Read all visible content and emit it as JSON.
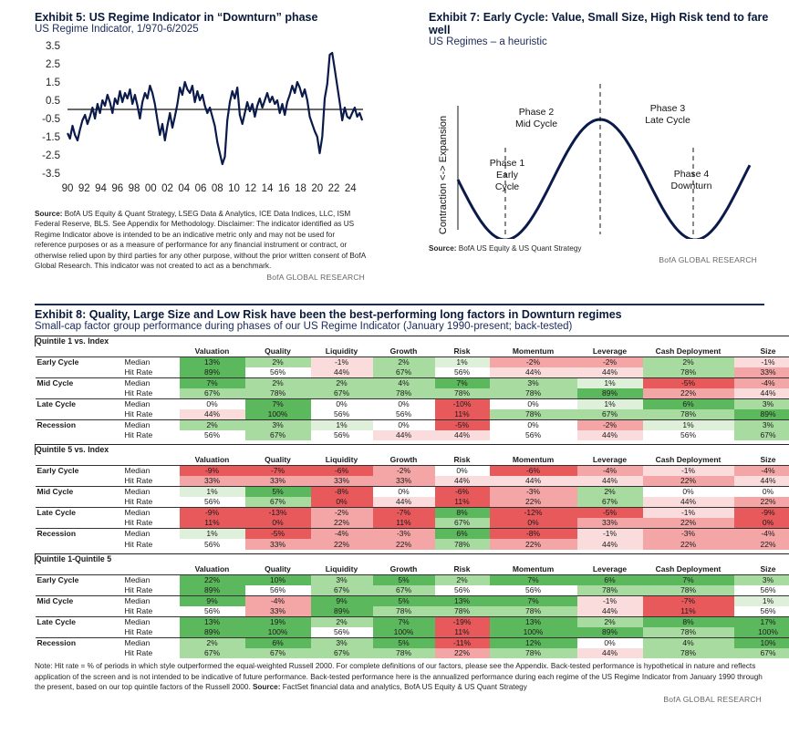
{
  "ex5": {
    "title": "Exhibit 5: US Regime Indicator in “Downturn” phase",
    "subtitle": "US Regime Indicator, 1/970-6/2025",
    "source_label": "Source:",
    "source_text": " BofA US Equity & Quant Strategy, LSEG Data & Analytics, ICE Data Indices, LLC, ISM Federal Reserve, BLS. See Appendix for Methodology. Disclaimer: The indicator identified as US Regime Indicator above is intended to be an indicative metric only and may not be used for reference purposes or as a measure of performance for any financial instrument or contract, or otherwise relied upon by third parties for any other purpose, without the prior written consent of BofA Global Research. This indicator was not created to act as a benchmark.",
    "brand": "BofA GLOBAL RESEARCH"
  },
  "chart_data": [
    {
      "type": "line",
      "title": "Exhibit 5: US Regime Indicator in “Downturn” phase",
      "subtitle": "US Regime Indicator, 1/970-6/2025",
      "ylim": [
        -3.5,
        3.5
      ],
      "yticks": [
        3.5,
        2.5,
        1.5,
        0.5,
        -0.5,
        -1.5,
        -2.5,
        -3.5
      ],
      "ytick_labels": [
        "3.5",
        "2.5",
        "1.5",
        "0.5",
        "-0.5",
        "-1.5",
        "-2.5",
        "-3.5"
      ],
      "xlim": [
        1990,
        2025.5
      ],
      "xticks": [
        1990,
        1992,
        1994,
        1996,
        1998,
        2000,
        2002,
        2004,
        2006,
        2008,
        2010,
        2012,
        2014,
        2016,
        2018,
        2020,
        2022,
        2024
      ],
      "xtick_labels": [
        "90",
        "92",
        "94",
        "96",
        "98",
        "00",
        "02",
        "04",
        "06",
        "08",
        "10",
        "12",
        "14",
        "16",
        "18",
        "20",
        "22",
        "24"
      ],
      "reference_line": 0,
      "color": "#0a1a4a",
      "x": [
        1990.0,
        1990.3,
        1990.6,
        1990.9,
        1991.2,
        1991.5,
        1991.8,
        1992.1,
        1992.4,
        1992.7,
        1993.0,
        1993.3,
        1993.6,
        1993.9,
        1994.2,
        1994.5,
        1994.8,
        1995.1,
        1995.4,
        1995.7,
        1996.0,
        1996.3,
        1996.6,
        1996.9,
        1997.2,
        1997.5,
        1997.8,
        1998.1,
        1998.4,
        1998.7,
        1999.0,
        1999.3,
        1999.6,
        1999.9,
        2000.2,
        2000.5,
        2000.8,
        2001.1,
        2001.4,
        2001.7,
        2002.0,
        2002.3,
        2002.6,
        2002.9,
        2003.2,
        2003.5,
        2003.8,
        2004.1,
        2004.4,
        2004.7,
        2005.0,
        2005.3,
        2005.6,
        2005.9,
        2006.2,
        2006.5,
        2006.8,
        2007.1,
        2007.4,
        2007.7,
        2008.0,
        2008.3,
        2008.6,
        2008.9,
        2009.2,
        2009.5,
        2009.8,
        2010.1,
        2010.4,
        2010.7,
        2011.0,
        2011.3,
        2011.6,
        2011.9,
        2012.2,
        2012.5,
        2012.8,
        2013.1,
        2013.4,
        2013.7,
        2014.0,
        2014.3,
        2014.6,
        2014.9,
        2015.2,
        2015.5,
        2015.8,
        2016.1,
        2016.4,
        2016.7,
        2017.0,
        2017.3,
        2017.6,
        2017.9,
        2018.2,
        2018.5,
        2018.8,
        2019.1,
        2019.4,
        2019.7,
        2020.0,
        2020.3,
        2020.6,
        2020.9,
        2021.2,
        2021.5,
        2021.8,
        2022.1,
        2022.4,
        2022.7,
        2023.0,
        2023.3,
        2023.6,
        2023.9,
        2024.2,
        2024.5,
        2024.8,
        2025.1,
        2025.4
      ],
      "y": [
        -1.3,
        -1.6,
        -0.9,
        -1.4,
        -1.7,
        -1.1,
        -0.6,
        -0.3,
        -0.8,
        -0.4,
        0.1,
        -0.5,
        0.3,
        -0.2,
        0.5,
        0.2,
        0.8,
        0.4,
        -0.2,
        0.6,
        0.3,
        1.0,
        0.4,
        0.9,
        0.6,
        1.1,
        0.3,
        0.8,
        0.2,
        -0.5,
        0.4,
        0.9,
        0.6,
        1.3,
        0.9,
        0.3,
        -0.6,
        -1.4,
        -0.8,
        -1.7,
        -0.9,
        -0.2,
        -1.0,
        -0.4,
        0.3,
        1.2,
        0.8,
        1.5,
        1.1,
        0.9,
        1.3,
        0.4,
        1.0,
        0.5,
        0.8,
        0.2,
        -0.2,
        0.1,
        -0.4,
        -0.9,
        -1.8,
        -2.4,
        -3.0,
        -2.6,
        -0.6,
        0.4,
        1.0,
        0.6,
        1.2,
        -0.3,
        -0.8,
        -0.2,
        0.4,
        -0.1,
        0.3,
        -0.4,
        0.2,
        0.6,
        0.1,
        0.5,
        0.9,
        0.4,
        0.7,
        0.3,
        0.5,
        -0.2,
        0.3,
        -0.3,
        0.4,
        0.8,
        1.3,
        0.9,
        1.5,
        1.2,
        0.7,
        1.1,
        0.5,
        -0.4,
        -0.8,
        -1.2,
        -1.5,
        -2.4,
        -1.5,
        0.6,
        1.4,
        3.0,
        3.1,
        2.2,
        1.3,
        0.4,
        -0.6,
        0.1,
        -0.4,
        -0.5,
        -0.2,
        0.1,
        -0.4,
        -0.2,
        -0.6
      ]
    }
  ],
  "ex7": {
    "title": "Exhibit 7: Early Cycle: Value, Small Size, High Risk tend to fare well",
    "subtitle": "US Regimes – a heuristic",
    "y_axis_label": "Contraction <-> Expansion",
    "phase1": [
      "Phase 1",
      "Early",
      "Cycle"
    ],
    "phase2": [
      "Phase 2",
      "Mid Cycle"
    ],
    "phase3": [
      "Phase 3",
      "Late Cycle"
    ],
    "phase4": [
      "Phase 4",
      "Downturn"
    ],
    "source_label": "Source:",
    "source_text": " BofA US Equity & US Quant Strategy",
    "brand": "BofA GLOBAL RESEARCH"
  },
  "ex8": {
    "title": "Exhibit 8: Quality, Large Size and Low Risk have been the best-performing long factors in Downturn regimes",
    "subtitle": "Small-cap factor group performance during phases of our US Regime Indicator (January 1990-present; back-tested)",
    "columns": [
      "Valuation",
      "Quality",
      "Liquidity",
      "Growth",
      "Risk",
      "Momentum",
      "Leverage",
      "Cash Deployment",
      "Size"
    ],
    "stat_labels": [
      "Median",
      "Hit Rate"
    ],
    "blocks": [
      {
        "title": "Quintile 1 vs. Index",
        "rows": [
          {
            "phase": "Early Cycle",
            "median": [
              "13%",
              "2%",
              "-1%",
              "2%",
              "1%",
              "-2%",
              "-2%",
              "2%",
              "-1%"
            ],
            "hit": [
              "89%",
              "56%",
              "44%",
              "67%",
              "56%",
              "44%",
              "44%",
              "78%",
              "33%"
            ]
          },
          {
            "phase": "Mid Cycle",
            "median": [
              "7%",
              "2%",
              "2%",
              "4%",
              "7%",
              "3%",
              "1%",
              "-5%",
              "-4%"
            ],
            "hit": [
              "67%",
              "78%",
              "67%",
              "78%",
              "78%",
              "78%",
              "89%",
              "22%",
              "44%"
            ]
          },
          {
            "phase": "Late Cycle",
            "median": [
              "0%",
              "7%",
              "0%",
              "0%",
              "-10%",
              "0%",
              "1%",
              "6%",
              "3%"
            ],
            "hit": [
              "44%",
              "100%",
              "56%",
              "56%",
              "11%",
              "78%",
              "67%",
              "78%",
              "89%"
            ]
          },
          {
            "phase": "Recession",
            "median": [
              "2%",
              "3%",
              "1%",
              "0%",
              "-5%",
              "0%",
              "-2%",
              "1%",
              "3%"
            ],
            "hit": [
              "56%",
              "67%",
              "56%",
              "44%",
              "44%",
              "56%",
              "44%",
              "56%",
              "67%"
            ]
          }
        ]
      },
      {
        "title": "Quintile 5 vs. Index",
        "rows": [
          {
            "phase": "Early Cycle",
            "median": [
              "-9%",
              "-7%",
              "-6%",
              "-2%",
              "0%",
              "-6%",
              "-4%",
              "-1%",
              "-4%"
            ],
            "hit": [
              "33%",
              "33%",
              "33%",
              "33%",
              "44%",
              "44%",
              "44%",
              "22%",
              "44%"
            ]
          },
          {
            "phase": "Mid Cycle",
            "median": [
              "1%",
              "5%",
              "-8%",
              "0%",
              "-6%",
              "-3%",
              "2%",
              "0%",
              "0%"
            ],
            "hit": [
              "56%",
              "67%",
              "0%",
              "44%",
              "11%",
              "22%",
              "67%",
              "44%",
              "22%"
            ]
          },
          {
            "phase": "Late Cycle",
            "median": [
              "-9%",
              "-13%",
              "-2%",
              "-7%",
              "8%",
              "-12%",
              "-5%",
              "-1%",
              "-9%"
            ],
            "hit": [
              "11%",
              "0%",
              "22%",
              "11%",
              "67%",
              "0%",
              "33%",
              "22%",
              "0%"
            ]
          },
          {
            "phase": "Recession",
            "median": [
              "1%",
              "-5%",
              "-4%",
              "-3%",
              "6%",
              "-8%",
              "-1%",
              "-3%",
              "-4%"
            ],
            "hit": [
              "56%",
              "33%",
              "22%",
              "22%",
              "78%",
              "22%",
              "44%",
              "22%",
              "22%"
            ]
          }
        ]
      },
      {
        "title": "Quintile 1-Quintile 5",
        "rows": [
          {
            "phase": "Early Cycle",
            "median": [
              "22%",
              "10%",
              "3%",
              "5%",
              "2%",
              "7%",
              "6%",
              "7%",
              "3%"
            ],
            "hit": [
              "89%",
              "56%",
              "67%",
              "67%",
              "56%",
              "56%",
              "78%",
              "78%",
              "56%"
            ]
          },
          {
            "phase": "Mid Cycle",
            "median": [
              "9%",
              "-4%",
              "9%",
              "5%",
              "13%",
              "7%",
              "-1%",
              "-7%",
              "1%"
            ],
            "hit": [
              "56%",
              "33%",
              "89%",
              "78%",
              "78%",
              "78%",
              "44%",
              "11%",
              "56%"
            ]
          },
          {
            "phase": "Late Cycle",
            "median": [
              "13%",
              "19%",
              "2%",
              "7%",
              "-19%",
              "13%",
              "2%",
              "8%",
              "17%"
            ],
            "hit": [
              "89%",
              "100%",
              "56%",
              "100%",
              "11%",
              "100%",
              "89%",
              "78%",
              "100%"
            ]
          },
          {
            "phase": "Recession",
            "median": [
              "2%",
              "6%",
              "3%",
              "5%",
              "-11%",
              "12%",
              "0%",
              "4%",
              "10%"
            ],
            "hit": [
              "67%",
              "67%",
              "67%",
              "78%",
              "22%",
              "78%",
              "44%",
              "78%",
              "67%"
            ]
          }
        ]
      }
    ],
    "note_text": "Note: Hit rate = % of periods in which style outperformed the equal-weighted Russell 2000. For complete definitions of our factors, please see the Appendix. Back-tested performance is hypothetical in nature and reflects application of the screen and is not intended to be indicative of future performance. Back-tested performance here is the annualized performance during each regime of the US Regime Indicator from January 1990 through the present, based on our top quintile factors of the Russell 2000.",
    "source_label": "Source:",
    "source_text": " FactSet financial data and analytics, BofA US Equity & US Quant Strategy",
    "brand": "BofA GLOBAL RESEARCH"
  }
}
